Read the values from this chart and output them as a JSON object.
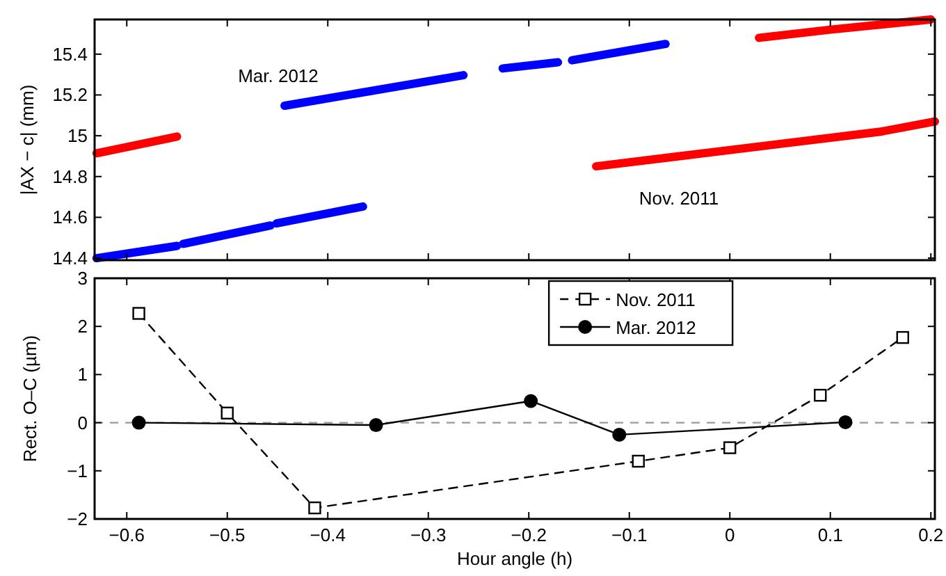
{
  "chart_data": [
    {
      "type": "line",
      "ylabel": "|AX − c| (mm)",
      "xlim": [
        -0.632,
        0.204
      ],
      "xticks": [
        -0.6,
        -0.5,
        -0.4,
        -0.3,
        -0.2,
        -0.1,
        0,
        0.1,
        0.2
      ],
      "ylim": [
        14.39,
        15.57
      ],
      "yticks": [
        14.4,
        14.6,
        14.8,
        15,
        15.2,
        15.4
      ],
      "tick_labels": "y",
      "marker": "none",
      "annotations": [
        "Mar. 2012",
        "Nov. 2011"
      ],
      "series": [
        {
          "color": "#ff0000",
          "x": [
            -0.63,
            -0.59,
            -0.55
          ],
          "values": [
            14.914,
            14.955,
            14.996
          ]
        },
        {
          "color": "#ff0000",
          "x": [
            -0.133,
            -0.05,
            0.05,
            0.15,
            0.204
          ],
          "values": [
            14.85,
            14.9,
            14.96,
            15.02,
            15.07
          ]
        },
        {
          "color": "#ff0000",
          "x": [
            0.029,
            0.1,
            0.2
          ],
          "values": [
            15.48,
            15.52,
            15.57
          ]
        },
        {
          "color": "#0000ff",
          "x": [
            -0.63,
            -0.55,
            -0.547,
            -0.544,
            -0.457,
            -0.454,
            -0.451,
            -0.365
          ],
          "values": [
            14.4,
            14.46,
            null,
            14.47,
            14.56,
            null,
            14.57,
            14.653
          ]
        },
        {
          "color": "#0000ff",
          "x": [
            -0.443,
            -0.265,
            -0.26,
            -0.226,
            -0.171,
            -0.165,
            -0.157,
            -0.064
          ],
          "values": [
            15.147,
            15.297,
            null,
            15.33,
            15.36,
            null,
            15.37,
            15.45
          ]
        }
      ]
    },
    {
      "type": "line",
      "xlabel": "Hour angle (h)",
      "ylabel": "Rect. O–C (µm)",
      "xlim": [
        -0.632,
        0.204
      ],
      "xticks": [
        -0.6,
        -0.5,
        -0.4,
        -0.3,
        -0.2,
        -0.1,
        0,
        0.1,
        0.2
      ],
      "ylim": [
        -2,
        3
      ],
      "yticks": [
        -2,
        -1,
        0,
        1,
        2,
        3
      ],
      "legend": "top",
      "ref_lines": [
        {
          "axis": "y",
          "value": 0,
          "color": "#999999",
          "line_style": "dashed"
        }
      ],
      "series": [
        {
          "name": "Nov. 2011",
          "color": "#000000",
          "marker": "square",
          "line_style": "dashed",
          "x": [
            -0.588,
            -0.5,
            -0.413,
            -0.091,
            0,
            0.09,
            0.172
          ],
          "values": [
            2.27,
            0.2,
            -1.77,
            -0.8,
            -0.52,
            0.57,
            1.77
          ]
        },
        {
          "name": "Mar. 2012",
          "color": "#000000",
          "marker": "circle",
          "line_style": "solid",
          "x": [
            -0.588,
            -0.352,
            -0.198,
            -0.11,
            0.115
          ],
          "values": [
            0,
            -0.05,
            0.45,
            -0.25,
            0.01
          ]
        }
      ]
    }
  ]
}
